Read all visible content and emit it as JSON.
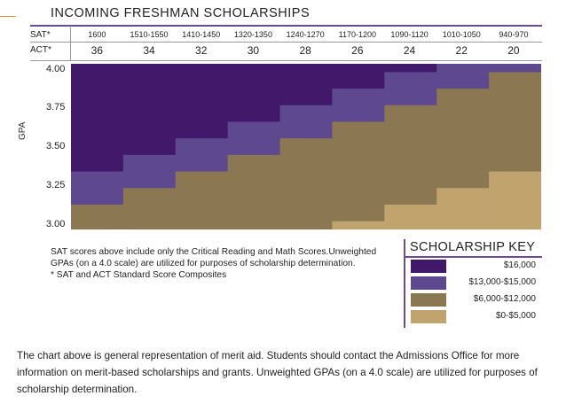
{
  "title": "INCOMING FRESHMAN SCHOLARSHIPS",
  "row_labels": {
    "sat": "SAT*",
    "act": "ACT*"
  },
  "axis_label": "GPA",
  "columns": [
    {
      "sat": "1600",
      "act": "36"
    },
    {
      "sat": "1510-1550",
      "act": "34"
    },
    {
      "sat": "1410-1450",
      "act": "32"
    },
    {
      "sat": "1320-1350",
      "act": "30"
    },
    {
      "sat": "1240-1270",
      "act": "28"
    },
    {
      "sat": "1170-1200",
      "act": "26"
    },
    {
      "sat": "1090-1120",
      "act": "24"
    },
    {
      "sat": "1010-1050",
      "act": "22"
    },
    {
      "sat": "940-970",
      "act": "20"
    }
  ],
  "gpa_ticks": [
    "4.00",
    "3.75",
    "3.50",
    "3.25",
    "3.00"
  ],
  "notes": {
    "line1": "SAT scores above include only the Critical Reading and Math Scores.Unweighted GPAs (on a 4.0 scale) are utilized for purposes of scholarship determination.",
    "line2": "* SAT and ACT Standard Score Composites"
  },
  "key": {
    "title": "SCHOLARSHIP KEY",
    "items": [
      {
        "label": "$16,000",
        "color": "#42196a"
      },
      {
        "label": "$13,000-$15,000",
        "color": "#5e4890"
      },
      {
        "label": "$6,000-$12,000",
        "color": "#8b7752"
      },
      {
        "label": "$0-$5,000",
        "color": "#c1a36e"
      }
    ]
  },
  "footer": "The chart above is general representation of merit aid. Students should contact the Admissions Office for more information on merit-based scholarships and grants.  Unweighted GPAs (on a 4.0 scale) are utilized for purposes of scholarship determination.",
  "chart_data": {
    "type": "heatmap",
    "x_categories": [
      "1600 / 36",
      "1510-1550 / 34",
      "1410-1450 / 32",
      "1320-1350 / 30",
      "1240-1270 / 28",
      "1170-1200 / 26",
      "1090-1120 / 24",
      "1010-1050 / 22",
      "940-970 / 20"
    ],
    "ylabel": "GPA",
    "ylim": [
      3.0,
      4.0
    ],
    "y_ticks": [
      4.0,
      3.75,
      3.5,
      3.25,
      3.0
    ],
    "tiers": [
      "$16,000",
      "$13,000-$15,000",
      "$6,000-$12,000",
      "$0-$5,000"
    ],
    "min_gpa_16000": [
      3.35,
      3.45,
      3.55,
      3.65,
      3.75,
      3.85,
      3.95,
      null,
      null
    ],
    "min_gpa_13000_15000": [
      3.15,
      3.25,
      3.35,
      3.45,
      3.55,
      3.65,
      3.75,
      3.85,
      3.95
    ],
    "min_gpa_6000_12000": [
      3.0,
      3.0,
      3.0,
      3.0,
      3.0,
      3.05,
      3.15,
      3.25,
      3.35
    ]
  }
}
